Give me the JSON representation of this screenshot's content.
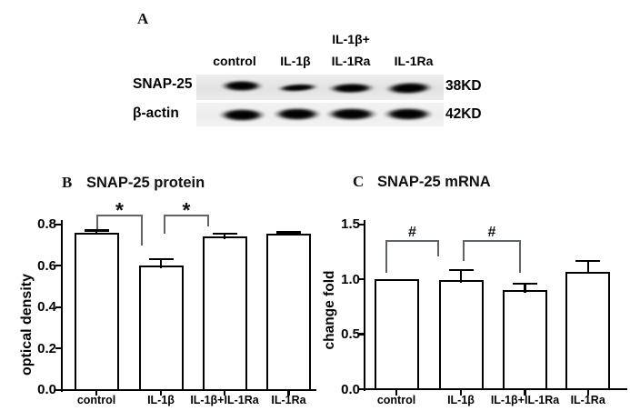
{
  "figure": {
    "background": "#ffffff",
    "ink_color": "#000000",
    "bracket_color": "#5f6468",
    "blot_strip_color_top": "#e9e9e9",
    "blot_strip_color_bottom": "#f1f1f1"
  },
  "panel_a": {
    "label": "A",
    "lane_labels": [
      [
        "control"
      ],
      [
        "IL-1β"
      ],
      [
        "IL-1β+",
        "IL-1Ra"
      ],
      [
        "IL-1Ra"
      ]
    ],
    "rows": [
      {
        "protein": "SNAP-25",
        "weight": "38KD",
        "bands": [
          {
            "x": 49.5,
            "y": 12.5,
            "w": 48,
            "h": 13,
            "tilt": 0
          },
          {
            "x": 111,
            "y": 14,
            "w": 47,
            "h": 9,
            "tilt": -3
          },
          {
            "x": 170.5,
            "y": 14.5,
            "w": 53,
            "h": 12,
            "tilt": -1
          },
          {
            "x": 234,
            "y": 15,
            "w": 54,
            "h": 14,
            "tilt": -2
          }
        ]
      },
      {
        "protein": "β-actin",
        "weight": "42KD",
        "bands": [
          {
            "x": 50,
            "y": 13.5,
            "w": 53,
            "h": 15,
            "tilt": 0
          },
          {
            "x": 111,
            "y": 13,
            "w": 54,
            "h": 15,
            "tilt": 0
          },
          {
            "x": 171,
            "y": 13,
            "w": 58,
            "h": 15,
            "tilt": 0
          },
          {
            "x": 233,
            "y": 13,
            "w": 56,
            "h": 15,
            "tilt": 0
          }
        ]
      }
    ]
  },
  "chart_data": [
    {
      "panel_label": "B",
      "type": "bar",
      "title": "SNAP-25 protein",
      "xlabel": "",
      "ylabel": "optical density",
      "ylim": [
        0,
        0.8
      ],
      "yticks": [
        "0.0",
        "0.2",
        "0.4",
        "0.6",
        "0.8"
      ],
      "categories": [
        "control",
        "IL-1β",
        "IL-1β+IL-1Ra",
        "IL-1Ra"
      ],
      "values": [
        0.76,
        0.6,
        0.74,
        0.755
      ],
      "errors": [
        0.01,
        0.032,
        0.016,
        0.007
      ],
      "bar_fill": "#ffffff",
      "bar_outline": "#000000",
      "grid": false,
      "legend": "none",
      "significance": [
        {
          "symbol": "*",
          "between": [
            "control",
            "IL-1β"
          ]
        },
        {
          "symbol": "*",
          "between": [
            "IL-1β",
            "IL-1β+IL-1Ra"
          ]
        }
      ]
    },
    {
      "panel_label": "C",
      "type": "bar",
      "title": "SNAP-25 mRNA",
      "xlabel": "",
      "ylabel": "change fold",
      "ylim": [
        0,
        1.5
      ],
      "yticks": [
        "0.0",
        "0.5",
        "1.0",
        "1.5"
      ],
      "categories": [
        "control",
        "IL-1β",
        "IL-1β+IL-1Ra",
        "IL-1Ra"
      ],
      "values": [
        1.0,
        0.99,
        0.9,
        1.07
      ],
      "errors": [
        0,
        0.095,
        0.06,
        0.095
      ],
      "bar_fill": "#ffffff",
      "bar_outline": "#000000",
      "grid": false,
      "legend": "none",
      "significance": [
        {
          "symbol": "#",
          "between": [
            "control",
            "IL-1β"
          ]
        },
        {
          "symbol": "#",
          "between": [
            "IL-1β",
            "IL-1β+IL-1Ra"
          ]
        }
      ]
    }
  ]
}
